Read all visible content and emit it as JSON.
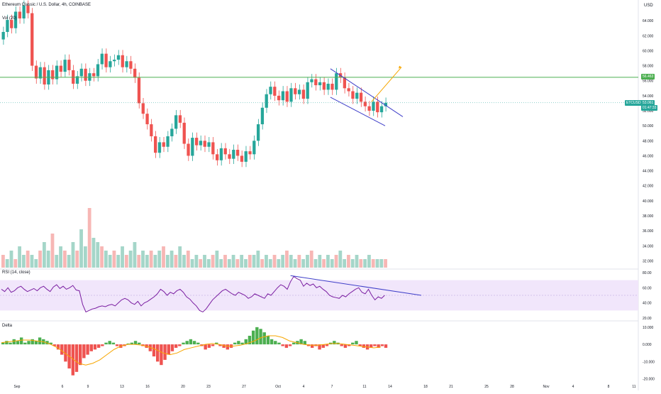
{
  "header": {
    "title": "Ethereum Classic / U.S. Dollar, 4h, COINBASE",
    "currency": "USD",
    "volume_label": "Vol (20)",
    "rsi_label": "RSI (14, close)",
    "delta_label": "Delta"
  },
  "price_tags": {
    "ticker": "ETCUSD",
    "last_price": "53.061",
    "countdown": "01:47:33",
    "resistance": "56.463"
  },
  "colors": {
    "up": "#26a69a",
    "down": "#ef5350",
    "resistance": "#4caf50",
    "channel": "#3f3fc9",
    "arrow": "#f7a600",
    "rsi_line": "#7b1fa2",
    "rsi_band": "#f1e6fb",
    "delta_up": "#4caf50",
    "delta_down": "#ef5350",
    "delta_ma": "#f7a600",
    "vol_ma": "#f6b26b"
  },
  "chart_data": [
    {
      "type": "candlestick",
      "title": "Ethereum Classic / U.S. Dollar, 4h, COINBASE",
      "x_ticks": [
        "Sep",
        "6",
        "9",
        "13",
        "16",
        "20",
        "23",
        "27",
        "Oct",
        "4",
        "7",
        "11",
        "14",
        "18",
        "21",
        "25",
        "28",
        "Nov",
        "4",
        "8",
        "11"
      ],
      "y_ticks": [
        "64.000",
        "62.000",
        "60.000",
        "58.000",
        "56.000",
        "54.000",
        "52.000",
        "50.000",
        "48.000",
        "46.000",
        "44.000",
        "42.000",
        "40.000",
        "38.000",
        "36.000",
        "34.000",
        "32.000"
      ],
      "ylim": [
        31,
        66
      ],
      "closes": [
        62.5,
        64.1,
        63.0,
        65.2,
        64.3,
        66.0,
        65.0,
        58.0,
        56.3,
        57.8,
        55.5,
        57.4,
        56.2,
        58.0,
        57.2,
        58.8,
        57.4,
        55.6,
        56.6,
        57.6,
        56.0,
        57.0,
        56.6,
        58.2,
        59.6,
        57.8,
        58.6,
        58.8,
        59.4,
        57.8,
        58.6,
        57.6,
        56.4,
        53.0,
        51.6,
        50.2,
        48.6,
        46.4,
        47.8,
        47.2,
        48.6,
        49.6,
        51.4,
        50.4,
        47.6,
        46.0,
        48.4,
        47.4,
        48.0,
        47.2,
        47.8,
        46.2,
        45.4,
        47.0,
        46.2,
        45.6,
        46.8,
        46.0,
        45.2,
        46.6,
        46.2,
        48.0,
        50.2,
        52.4,
        54.2,
        55.2,
        54.0,
        53.4,
        54.6,
        53.2,
        55.0,
        54.2,
        54.8,
        53.6,
        55.8,
        56.2,
        55.4,
        55.8,
        54.8,
        55.6,
        54.8,
        57.0,
        56.4,
        55.0,
        54.6,
        53.6,
        54.4,
        53.2,
        52.6,
        52.0,
        53.2,
        51.8,
        52.6,
        53.06
      ],
      "resistance_level": 56.463,
      "last_price": 53.061,
      "pattern": {
        "name": "falling wedge",
        "breakout_target": 57.8
      }
    },
    {
      "type": "bar",
      "title": "Vol (20)",
      "values": [
        3,
        2,
        4,
        2,
        5,
        3,
        4,
        3,
        2,
        4,
        6,
        4,
        8,
        3,
        5,
        4,
        3,
        6,
        4,
        9,
        5,
        14,
        7,
        6,
        5,
        4,
        3,
        4,
        3,
        5,
        3,
        4,
        6,
        3,
        4,
        3,
        4,
        3,
        4,
        5,
        3,
        4,
        3,
        5,
        3,
        4,
        2,
        3,
        2,
        3,
        2,
        3,
        4,
        2,
        3,
        2,
        3,
        2,
        3,
        2,
        3,
        3,
        4,
        2,
        3,
        2,
        3,
        2,
        3,
        4,
        3,
        2,
        3,
        2,
        3,
        4,
        2,
        3,
        2,
        3,
        2,
        3,
        4,
        2,
        3,
        2,
        3,
        2,
        2,
        3,
        2,
        2,
        2,
        2
      ]
    },
    {
      "type": "line",
      "title": "RSI (14, close)",
      "y_ticks": [
        "80.00",
        "60.00",
        "40.00",
        "20.00"
      ],
      "ylim": [
        20,
        80
      ],
      "band": [
        30,
        70
      ],
      "values": [
        58,
        55,
        60,
        54,
        56,
        60,
        62,
        58,
        55,
        57,
        59,
        56,
        60,
        62,
        58,
        55,
        61,
        64,
        59,
        62,
        58,
        60,
        63,
        57,
        56,
        38,
        28,
        30,
        32,
        33,
        35,
        36,
        35,
        37,
        38,
        36,
        40,
        44,
        46,
        44,
        40,
        38,
        42,
        36,
        40,
        42,
        45,
        48,
        52,
        58,
        55,
        50,
        54,
        52,
        56,
        58,
        54,
        48,
        45,
        40,
        36,
        30,
        28,
        32,
        38,
        44,
        48,
        52,
        56,
        58,
        55,
        52,
        50,
        54,
        52,
        50,
        46,
        48,
        52,
        50,
        48,
        46,
        52,
        50,
        55,
        60,
        64,
        62,
        58,
        68,
        75,
        72,
        70,
        62,
        66,
        63,
        65,
        60,
        62,
        58,
        55,
        50,
        48,
        47,
        46,
        50,
        48,
        52,
        55,
        58,
        60,
        54,
        52,
        58,
        50,
        44,
        48,
        46,
        50
      ],
      "trendline": [
        76,
        50
      ]
    },
    {
      "type": "bar",
      "title": "Delta",
      "y_ticks": [
        "10.000",
        "0.000",
        "-10.000",
        "-20.000"
      ],
      "ylim": [
        -21,
        12
      ],
      "values": [
        1,
        2,
        1,
        3,
        2,
        4,
        1,
        2,
        3,
        2,
        4,
        3,
        2,
        1,
        -1,
        -3,
        -6,
        -10,
        -14,
        -18,
        -16,
        -12,
        -8,
        -6,
        -4,
        -3,
        -2,
        -1,
        1,
        2,
        1,
        -1,
        -2,
        -1,
        0.5,
        1,
        2,
        1,
        -1,
        -2,
        -4,
        -7,
        -10,
        -12,
        -9,
        -6,
        -4,
        -2,
        -1,
        1,
        2,
        3,
        2,
        1,
        -1,
        -3,
        -2,
        -1,
        1,
        -1,
        -2,
        -3,
        -2,
        1,
        2,
        1,
        3,
        5,
        8,
        10,
        9,
        7,
        5,
        3,
        2,
        1,
        -1,
        -2,
        -1,
        1,
        2,
        3,
        2,
        -1,
        -2,
        -1,
        -3,
        -2,
        -1,
        1,
        2,
        1,
        -1,
        -2,
        -1,
        1,
        2,
        -1,
        -2,
        -3,
        -2,
        -1,
        -2,
        -1,
        -2
      ],
      "ma": [
        1,
        1.5,
        2,
        2.5,
        2.5,
        2,
        1.5,
        0,
        -2,
        -5,
        -8,
        -11,
        -12,
        -11,
        -9,
        -6,
        -3,
        -1,
        0,
        0,
        -0.5,
        -1.5,
        -3,
        -5,
        -6,
        -5,
        -3,
        -2,
        -1,
        0,
        0.5,
        0,
        -1,
        -1,
        -0.5,
        0.5,
        2,
        4,
        5,
        5,
        4,
        2,
        1,
        0,
        -0.5,
        -0.5,
        0,
        0.5,
        0.5,
        0,
        -0.5,
        -1,
        -1.5,
        -2,
        -1.5
      ]
    }
  ]
}
